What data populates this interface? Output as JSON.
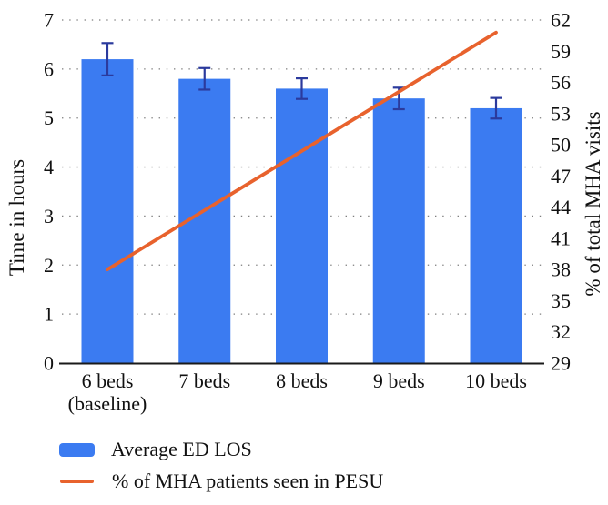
{
  "figure": {
    "background": "#ffffff",
    "text_color": "#111111"
  },
  "chart_data": {
    "type": "bar",
    "combo": "bar+line",
    "title": "",
    "categories": [
      "6 beds (baseline)",
      "7 beds",
      "8 beds",
      "9 beds",
      "10 beds"
    ],
    "category_lines": [
      [
        "6 beds",
        "(baseline)"
      ],
      [
        "7 beds"
      ],
      [
        "8 beds"
      ],
      [
        "9 beds"
      ],
      [
        "10 beds"
      ]
    ],
    "series": [
      {
        "name": "Average ED LOS",
        "type": "bar",
        "axis": "left",
        "values": [
          6.2,
          5.8,
          5.6,
          5.4,
          5.2
        ],
        "errors": [
          0.33,
          0.22,
          0.21,
          0.22,
          0.21
        ],
        "color": "#3b7bf1",
        "error_color": "#2b3a9d"
      },
      {
        "name": "% of MHA patients seen in PESU",
        "type": "line",
        "axis": "right",
        "values": [
          38,
          43.7,
          49.4,
          55.1,
          60.8
        ],
        "color": "#e8622d"
      }
    ],
    "left_axis": {
      "label": "Time in hours",
      "min": 0,
      "max": 7,
      "ticks": [
        0,
        1,
        2,
        3,
        4,
        5,
        6,
        7
      ]
    },
    "right_axis": {
      "label": "% of total MHA visits",
      "min": 29,
      "max": 62,
      "ticks": [
        29,
        32,
        35,
        38,
        41,
        44,
        47,
        50,
        53,
        56,
        59,
        62
      ]
    },
    "grid": {
      "style": "dotted",
      "color": "#7f7f7f",
      "on_left_ticks": true
    },
    "axis_line_color": "#1a1a1a",
    "legend_position": "bottom-left"
  },
  "legend": {
    "items": [
      {
        "label": "Average ED LOS",
        "swatch": "bar",
        "color": "#3b7bf1"
      },
      {
        "label": "% of MHA patients seen in PESU",
        "swatch": "line",
        "color": "#e8622d"
      }
    ]
  }
}
